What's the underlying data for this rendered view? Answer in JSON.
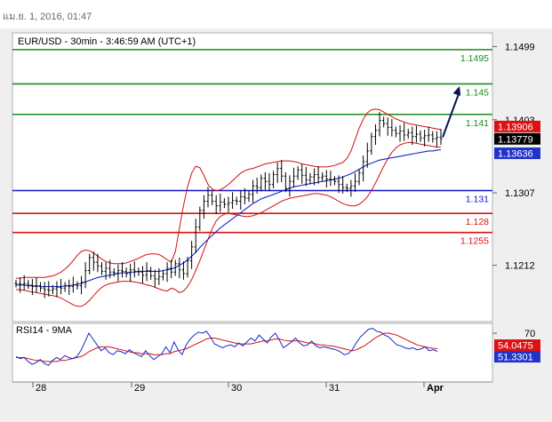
{
  "header": {
    "timestamp": "แม.ย. 1, 2016, 01:47"
  },
  "colors": {
    "candle": "#000000",
    "bollinger": "#d21010",
    "ma": "#1428c8",
    "resistance": "#1a8c1a",
    "support_red": "#dd1111",
    "support_blue": "#1414cc",
    "rsi": "#1428c8",
    "rsi_ma": "#d21010",
    "price_current_bg": "#000000",
    "price_ma_bg": "#2233cc",
    "price_upper_bg": "#dd1111",
    "rsi_ma_bg": "#dd1111",
    "rsi_current_bg": "#2233cc",
    "frame_bg": "#efefef"
  },
  "chart_data": [
    {
      "type": "candlestick",
      "title": "EUR/USD - 30min - 3:46:59 AM (UTC+1)",
      "x_tick_labels": [
        "28",
        "29",
        "30",
        "31",
        "Apr"
      ],
      "y_axis": {
        "tick_labels": [
          "1.1499",
          "1.1403",
          "1.1307",
          "1.1212"
        ],
        "ylim": [
          1.1138,
          1.1517
        ]
      },
      "levels": [
        {
          "value": 1.1495,
          "label": "1.1495",
          "color": "green"
        },
        {
          "value": 1.145,
          "label": "1.145",
          "color": "green"
        },
        {
          "value": 1.141,
          "label": "1.141",
          "color": "green"
        },
        {
          "value": 1.131,
          "label": "1.131",
          "color": "blue"
        },
        {
          "value": 1.128,
          "label": "1.128",
          "color": "red"
        },
        {
          "value": 1.1255,
          "label": "1.1255",
          "color": "red"
        }
      ],
      "price_tags": [
        {
          "label": "1.13906",
          "value": 1.13906,
          "style": "upper"
        },
        {
          "label": "1.13779",
          "value": 1.13779,
          "style": "current"
        },
        {
          "label": "1.13636",
          "value": 1.13636,
          "style": "ma"
        }
      ],
      "forecast_arrow": {
        "from": 1.138,
        "to": 1.1447
      },
      "close_series": [
        1.1188,
        1.1187,
        1.1188,
        1.1186,
        1.1184,
        1.1185,
        1.1182,
        1.118,
        1.1179,
        1.1181,
        1.1183,
        1.1182,
        1.1185,
        1.1184,
        1.1186,
        1.1185,
        1.119,
        1.1205,
        1.1222,
        1.1216,
        1.1211,
        1.1204,
        1.1208,
        1.1203,
        1.1202,
        1.1205,
        1.1204,
        1.1201,
        1.1206,
        1.1204,
        1.1203,
        1.1199,
        1.1205,
        1.1198,
        1.1194,
        1.1197,
        1.1201,
        1.1208,
        1.1203,
        1.1214,
        1.1206,
        1.1201,
        1.1218,
        1.1236,
        1.1262,
        1.1284,
        1.1296,
        1.1304,
        1.1296,
        1.129,
        1.1295,
        1.1292,
        1.1294,
        1.1297,
        1.1296,
        1.1302,
        1.13,
        1.1305,
        1.1316,
        1.1314,
        1.1326,
        1.1322,
        1.1318,
        1.1331,
        1.1339,
        1.1329,
        1.1313,
        1.1322,
        1.1329,
        1.1337,
        1.133,
        1.1324,
        1.1328,
        1.1331,
        1.1327,
        1.1329,
        1.1325,
        1.1324,
        1.1322,
        1.1318,
        1.1314,
        1.1313,
        1.1316,
        1.1322,
        1.1333,
        1.1348,
        1.1362,
        1.1381,
        1.1389,
        1.1402,
        1.1398,
        1.1393,
        1.1389,
        1.1385,
        1.1388,
        1.1383,
        1.1386,
        1.1381,
        1.1384,
        1.1379,
        1.1382,
        1.1383,
        1.1378,
        1.138,
        1.13779
      ],
      "bollinger_upper": [
        1.1195,
        1.1195,
        1.1196,
        1.1196,
        1.1196,
        1.1196,
        1.1196,
        1.1196,
        1.1197,
        1.1198,
        1.12,
        1.1203,
        1.1207,
        1.1212,
        1.1218,
        1.1225,
        1.123,
        1.1232,
        1.1231,
        1.1228,
        1.1224,
        1.122,
        1.1217,
        1.1215,
        1.1214,
        1.1214,
        1.1214,
        1.1215,
        1.1217,
        1.1219,
        1.1221,
        1.1224,
        1.1226,
        1.1227,
        1.1227,
        1.1226,
        1.1223,
        1.1219,
        1.1216,
        1.123,
        1.126,
        1.129,
        1.1315,
        1.1333,
        1.1342,
        1.134,
        1.133,
        1.1318,
        1.1312,
        1.131,
        1.1311,
        1.1314,
        1.1318,
        1.1323,
        1.1328,
        1.1333,
        1.1336,
        1.1338,
        1.1339,
        1.1341,
        1.1343,
        1.1345,
        1.1346,
        1.1347,
        1.1348,
        1.1349,
        1.1349,
        1.1349,
        1.1348,
        1.1347,
        1.1345,
        1.1344,
        1.1343,
        1.1342,
        1.1341,
        1.1341,
        1.1341,
        1.1342,
        1.1343,
        1.1345,
        1.1347,
        1.1352,
        1.1362,
        1.1377,
        1.1392,
        1.1404,
        1.1412,
        1.1416,
        1.1417,
        1.1416,
        1.1413,
        1.141,
        1.1407,
        1.1404,
        1.1402,
        1.14,
        1.1398,
        1.1397,
        1.1396,
        1.1395,
        1.1394,
        1.1393,
        1.1392,
        1.1391,
        1.139
      ],
      "bollinger_lower": [
        1.118,
        1.118,
        1.1179,
        1.1178,
        1.1177,
        1.1176,
        1.1175,
        1.1174,
        1.1173,
        1.1172,
        1.1171,
        1.1169,
        1.1166,
        1.1163,
        1.116,
        1.1158,
        1.1158,
        1.1161,
        1.1166,
        1.1172,
        1.1178,
        1.1183,
        1.1186,
        1.1188,
        1.1189,
        1.119,
        1.1191,
        1.1191,
        1.1191,
        1.119,
        1.1189,
        1.1188,
        1.1186,
        1.1185,
        1.1183,
        1.1181,
        1.1179,
        1.1178,
        1.1182,
        1.118,
        1.1176,
        1.1178,
        1.1184,
        1.1193,
        1.1205,
        1.1218,
        1.1232,
        1.1246,
        1.126,
        1.127,
        1.1276,
        1.1279,
        1.128,
        1.1279,
        1.1278,
        1.1277,
        1.1276,
        1.1276,
        1.1277,
        1.1279,
        1.1281,
        1.1284,
        1.1287,
        1.129,
        1.1293,
        1.1296,
        1.1298,
        1.13,
        1.1301,
        1.1302,
        1.1303,
        1.1304,
        1.1305,
        1.1306,
        1.1306,
        1.1305,
        1.1304,
        1.1302,
        1.1299,
        1.1296,
        1.1293,
        1.1291,
        1.129,
        1.129,
        1.1292,
        1.1296,
        1.1302,
        1.131,
        1.132,
        1.1331,
        1.1342,
        1.1352,
        1.136,
        1.1366,
        1.137,
        1.1372,
        1.1373,
        1.1373,
        1.1372,
        1.1371,
        1.137,
        1.1369,
        1.1368,
        1.1367,
        1.1367
      ],
      "moving_average": [
        1.1186,
        1.1186,
        1.1186,
        1.1185,
        1.1185,
        1.1185,
        1.1184,
        1.1184,
        1.1184,
        1.1184,
        1.1184,
        1.1184,
        1.1185,
        1.1185,
        1.1186,
        1.1187,
        1.1188,
        1.119,
        1.1192,
        1.1194,
        1.1196,
        1.1197,
        1.1198,
        1.1199,
        1.12,
        1.1201,
        1.1202,
        1.1202,
        1.1203,
        1.1203,
        1.1204,
        1.1204,
        1.1204,
        1.1204,
        1.1204,
        1.1204,
        1.1205,
        1.1206,
        1.1207,
        1.1209,
        1.1212,
        1.1215,
        1.1219,
        1.1224,
        1.1229,
        1.1235,
        1.1241,
        1.1246,
        1.1251,
        1.1256,
        1.1261,
        1.1265,
        1.1269,
        1.1273,
        1.1277,
        1.1281,
        1.1285,
        1.1289,
        1.1293,
        1.1296,
        1.1299,
        1.1301,
        1.1303,
        1.1305,
        1.1307,
        1.1309,
        1.1311,
        1.1313,
        1.1315,
        1.1316,
        1.1317,
        1.1318,
        1.1319,
        1.132,
        1.1321,
        1.1322,
        1.1323,
        1.1324,
        1.1325,
        1.1326,
        1.1328,
        1.133,
        1.1332,
        1.1335,
        1.1338,
        1.1341,
        1.1344,
        1.1346,
        1.1348,
        1.135,
        1.1351,
        1.1352,
        1.1353,
        1.1354,
        1.1355,
        1.1356,
        1.1357,
        1.1358,
        1.1359,
        1.136,
        1.1361,
        1.1362,
        1.1362,
        1.1363,
        1.13636
      ]
    },
    {
      "type": "line",
      "title": "RSI14 - 9MA",
      "y_axis": {
        "tick_labels": [
          "70"
        ],
        "ylim": [
          20,
          80
        ]
      },
      "value_tags": [
        {
          "label": "54.0475",
          "value": 54.0475,
          "style": "ma"
        },
        {
          "label": "51.3301",
          "value": 51.3301,
          "style": "current"
        }
      ],
      "rsi": [
        46,
        44,
        45,
        41,
        38,
        40,
        43,
        39,
        37,
        42,
        45,
        43,
        47,
        45,
        44,
        46,
        52,
        61,
        70,
        64,
        58,
        52,
        55,
        50,
        48,
        52,
        51,
        49,
        53,
        50,
        48,
        46,
        52,
        47,
        43,
        46,
        49,
        56,
        50,
        61,
        53,
        48,
        58,
        64,
        68,
        71,
        70,
        72,
        66,
        59,
        57,
        55,
        57,
        58,
        56,
        60,
        57,
        61,
        65,
        62,
        68,
        64,
        60,
        66,
        70,
        63,
        55,
        58,
        61,
        65,
        60,
        57,
        58,
        62,
        57,
        55,
        56,
        55,
        54,
        53,
        51,
        48,
        49,
        53,
        60,
        66,
        70,
        74,
        75,
        72,
        71,
        68,
        66,
        62,
        58,
        57,
        55,
        54,
        55,
        53,
        54,
        56,
        52,
        53,
        51.33
      ],
      "rsi_ma": [
        45,
        45,
        45,
        44,
        43,
        42,
        42,
        41,
        41,
        41,
        41,
        42,
        42,
        43,
        44,
        45,
        46,
        48,
        51,
        53,
        55,
        56,
        56,
        56,
        55,
        54,
        53,
        52,
        51,
        50,
        50,
        49,
        49,
        49,
        48,
        48,
        48,
        49,
        49,
        51,
        52,
        53,
        54,
        56,
        58,
        60,
        62,
        64,
        65,
        65,
        64,
        63,
        62,
        61,
        60,
        59,
        59,
        59,
        59,
        60,
        61,
        62,
        62,
        63,
        64,
        64,
        63,
        62,
        62,
        62,
        62,
        61,
        60,
        60,
        59,
        58,
        58,
        57,
        57,
        56,
        55,
        54,
        53,
        52,
        53,
        55,
        57,
        60,
        63,
        66,
        68,
        70,
        70,
        69,
        68,
        66,
        64,
        62,
        60,
        58,
        57,
        56,
        55,
        54.5,
        54.05
      ]
    }
  ]
}
